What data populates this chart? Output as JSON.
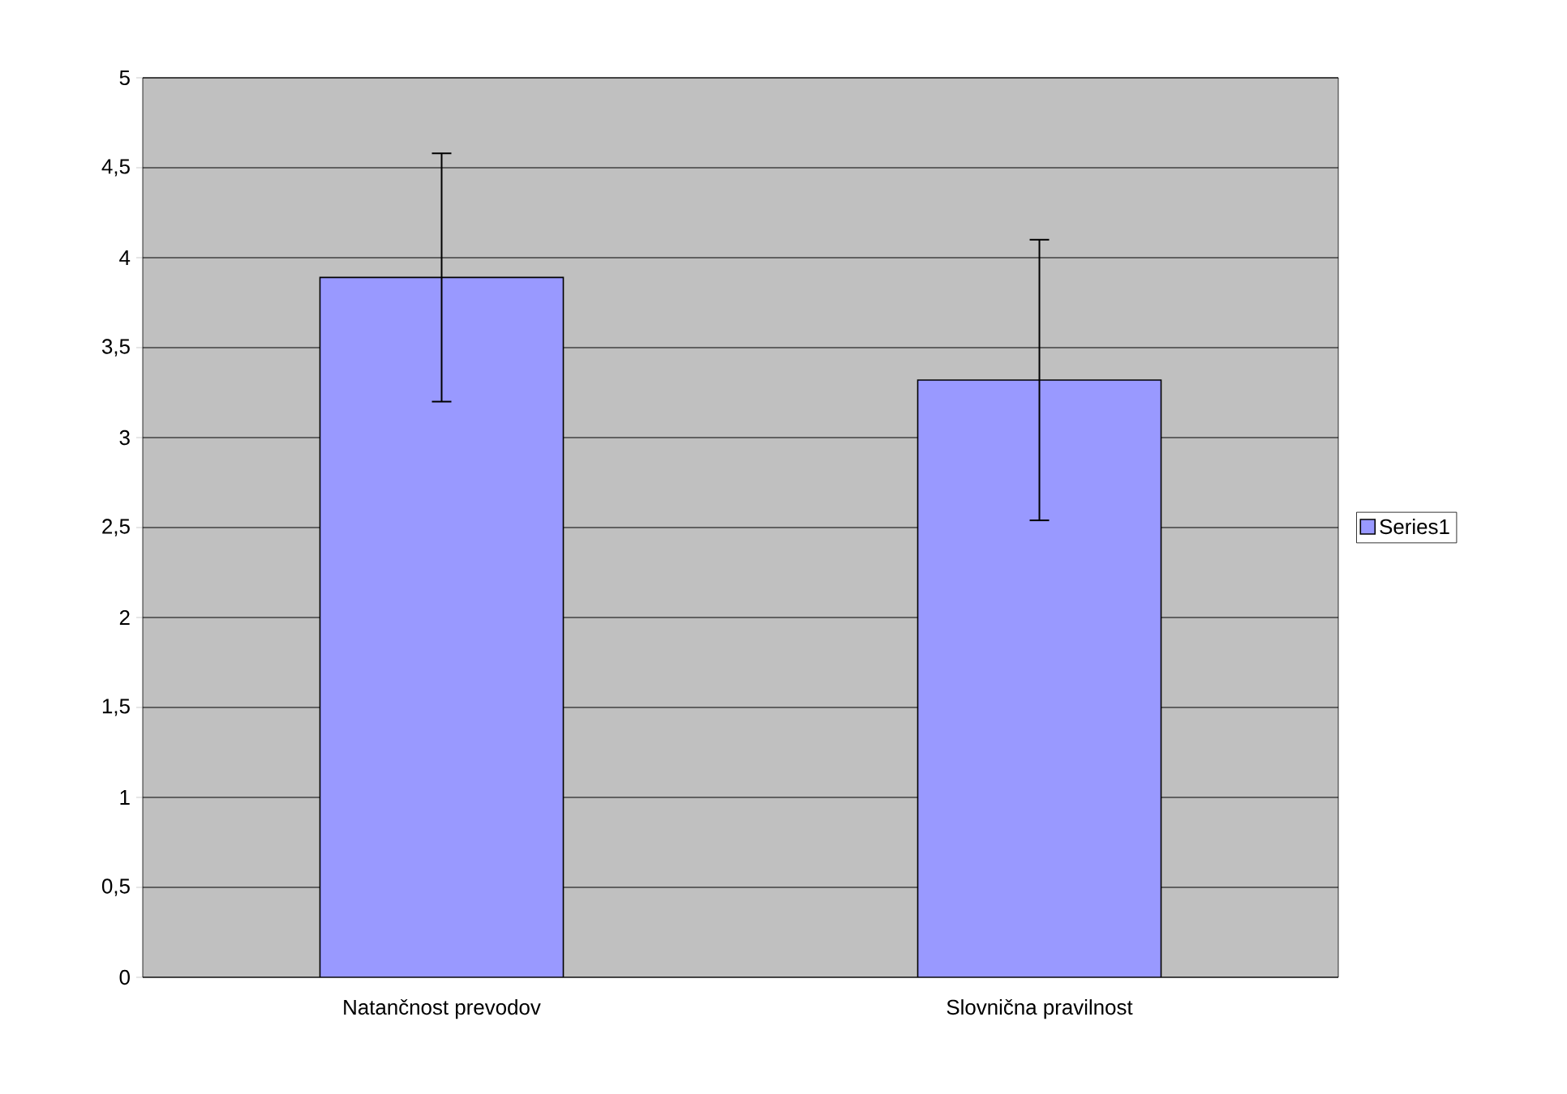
{
  "chart_data": {
    "type": "bar",
    "categories": [
      "Natančnost prevodov",
      "Slovnična pravilnost"
    ],
    "series": [
      {
        "name": "Series1",
        "color": "#9999ff",
        "values": [
          3.89,
          3.32
        ],
        "errors": [
          0.69,
          0.78
        ]
      }
    ],
    "ylim": [
      0,
      5
    ],
    "yticks": [
      0,
      {
        "value": 0.5,
        "label": "0,5"
      },
      1,
      {
        "value": 1.5,
        "label": "1,5"
      },
      2,
      {
        "value": 2.5,
        "label": "2,5"
      },
      3,
      {
        "value": 3.5,
        "label": "3,5"
      },
      4,
      {
        "value": 4.5,
        "label": "4,5"
      },
      5
    ],
    "grid": "y",
    "legend": "right"
  }
}
